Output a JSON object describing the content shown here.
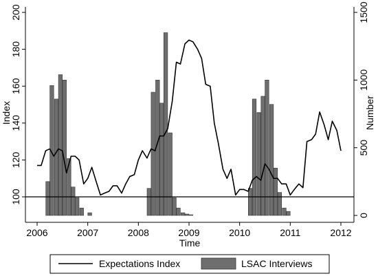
{
  "chart_data": {
    "type": "line",
    "xlabel": "Time",
    "ylabel_left": "Index",
    "ylabel_right": "Number",
    "x_ticks": [
      2006,
      2007,
      2008,
      2009,
      2010,
      2011,
      2012
    ],
    "x_range": [
      2006,
      2012
    ],
    "y_left": {
      "range": [
        90,
        200
      ],
      "ticks": [
        100,
        120,
        140,
        160,
        180,
        200
      ]
    },
    "y_right": {
      "range": [
        0,
        1500
      ],
      "ticks": [
        0,
        500,
        1000,
        1500
      ]
    },
    "reference_line": 100,
    "legend_position": "bottom",
    "series": [
      {
        "name": "Expectations Index",
        "kind": "line",
        "axis": "left",
        "color": "#000000",
        "x": [
          2006.0,
          2006.08,
          2006.17,
          2006.25,
          2006.33,
          2006.42,
          2006.5,
          2006.58,
          2006.67,
          2006.75,
          2006.83,
          2006.92,
          2007.0,
          2007.08,
          2007.17,
          2007.25,
          2007.33,
          2007.42,
          2007.5,
          2007.58,
          2007.67,
          2007.75,
          2007.83,
          2007.92,
          2008.0,
          2008.08,
          2008.17,
          2008.25,
          2008.33,
          2008.42,
          2008.5,
          2008.58,
          2008.67,
          2008.75,
          2008.83,
          2008.92,
          2009.0,
          2009.08,
          2009.17,
          2009.25,
          2009.33,
          2009.42,
          2009.5,
          2009.58,
          2009.67,
          2009.75,
          2009.83,
          2009.92,
          2010.0,
          2010.08,
          2010.17,
          2010.25,
          2010.33,
          2010.42,
          2010.5,
          2010.58,
          2010.67,
          2010.75,
          2010.83,
          2010.92,
          2011.0,
          2011.08,
          2011.17,
          2011.25,
          2011.33,
          2011.42,
          2011.5,
          2011.58,
          2011.67,
          2011.75,
          2011.83,
          2011.92,
          2012.0
        ],
        "values": [
          117,
          117,
          125,
          126,
          122,
          126,
          125,
          113,
          122,
          122,
          120,
          107,
          110,
          116,
          108,
          101,
          102,
          103,
          106,
          106,
          102,
          107,
          111,
          112,
          120,
          125,
          121,
          126,
          125,
          133,
          133,
          137,
          152,
          173,
          172,
          183,
          185,
          184,
          180,
          175,
          161,
          160,
          140,
          129,
          115,
          110,
          115,
          101,
          104,
          104,
          103,
          109,
          111,
          109,
          118,
          115,
          110,
          110,
          107,
          107,
          101,
          104,
          107,
          105,
          130,
          131,
          134,
          146,
          139,
          131,
          141,
          136,
          125
        ]
      },
      {
        "name": "LSAC Interviews",
        "kind": "bar",
        "axis": "right",
        "color": "#6e6e6e",
        "x": [
          2006.21,
          2006.29,
          2006.38,
          2006.46,
          2006.54,
          2006.63,
          2006.71,
          2006.79,
          2006.88,
          2007.04,
          2008.21,
          2008.29,
          2008.38,
          2008.46,
          2008.54,
          2008.63,
          2008.71,
          2008.79,
          2008.88,
          2008.96,
          2009.04,
          2010.21,
          2010.29,
          2010.38,
          2010.46,
          2010.54,
          2010.63,
          2010.71,
          2010.79,
          2010.88,
          2010.96
        ],
        "values": [
          250,
          960,
          860,
          1040,
          1000,
          420,
          210,
          130,
          55,
          20,
          200,
          910,
          1000,
          830,
          1350,
          610,
          130,
          55,
          20,
          10,
          5,
          200,
          860,
          760,
          880,
          1000,
          820,
          350,
          170,
          55,
          30
        ]
      }
    ]
  }
}
